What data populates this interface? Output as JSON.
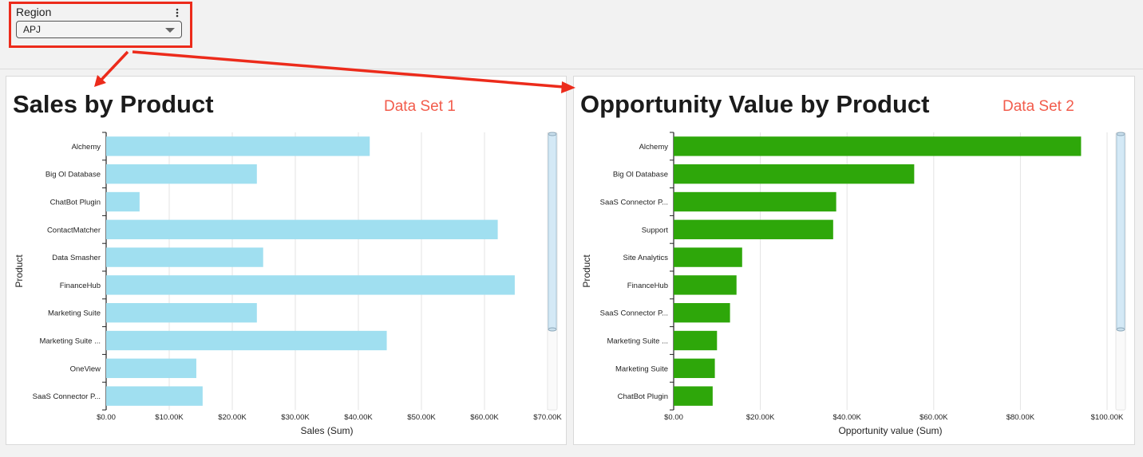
{
  "filter": {
    "label": "Region",
    "value": "APJ"
  },
  "annotations": {
    "color": "#ec2b1b",
    "note_color": "#f25c4c"
  },
  "panels": [
    {
      "title": "Sales by Product",
      "note": "Data Set 1",
      "chart_data": {
        "type": "bar",
        "orientation": "horizontal",
        "categories": [
          "Alchemy",
          "Big Ol Database",
          "ChatBot Plugin",
          "ContactMatcher",
          "Data Smasher",
          "FinanceHub",
          "Marketing Suite",
          "Marketing Suite ...",
          "OneView",
          "SaaS Connector P..."
        ],
        "values": [
          41800,
          23900,
          5300,
          62100,
          24900,
          64800,
          23900,
          44500,
          14300,
          15300
        ],
        "xlabel": "Sales (Sum)",
        "ylabel": "Product",
        "xlim": [
          0,
          70000
        ],
        "ticks": [
          0,
          10000,
          20000,
          30000,
          40000,
          50000,
          60000,
          70000
        ],
        "tick_labels": [
          "$0.00",
          "$10.00K",
          "$20.00K",
          "$30.00K",
          "$40.00K",
          "$50.00K",
          "$60.00K",
          "$70.00K"
        ],
        "bar_color": "#a0dff0",
        "grid": true,
        "scrollbar": true
      }
    },
    {
      "title": "Opportunity Value by Product",
      "note": "Data Set 2",
      "chart_data": {
        "type": "bar",
        "orientation": "horizontal",
        "categories": [
          "Alchemy",
          "Big Ol Database",
          "SaaS Connector P...",
          "Support",
          "Site Analytics",
          "FinanceHub",
          "SaaS Connector P...",
          "Marketing Suite ...",
          "Marketing Suite",
          "ChatBot Plugin"
        ],
        "values": [
          94000,
          55500,
          37500,
          36800,
          15800,
          14500,
          13000,
          10000,
          9500,
          9000
        ],
        "xlabel": "Opportunity value (Sum)",
        "ylabel": "Product",
        "xlim": [
          0,
          100000
        ],
        "ticks": [
          0,
          20000,
          40000,
          60000,
          80000,
          100000
        ],
        "tick_labels": [
          "$0.00",
          "$20.00K",
          "$40.00K",
          "$60.00K",
          "$80.00K",
          "$100.00K"
        ],
        "bar_color": "#2ea70a",
        "grid": true,
        "scrollbar": true
      }
    }
  ]
}
